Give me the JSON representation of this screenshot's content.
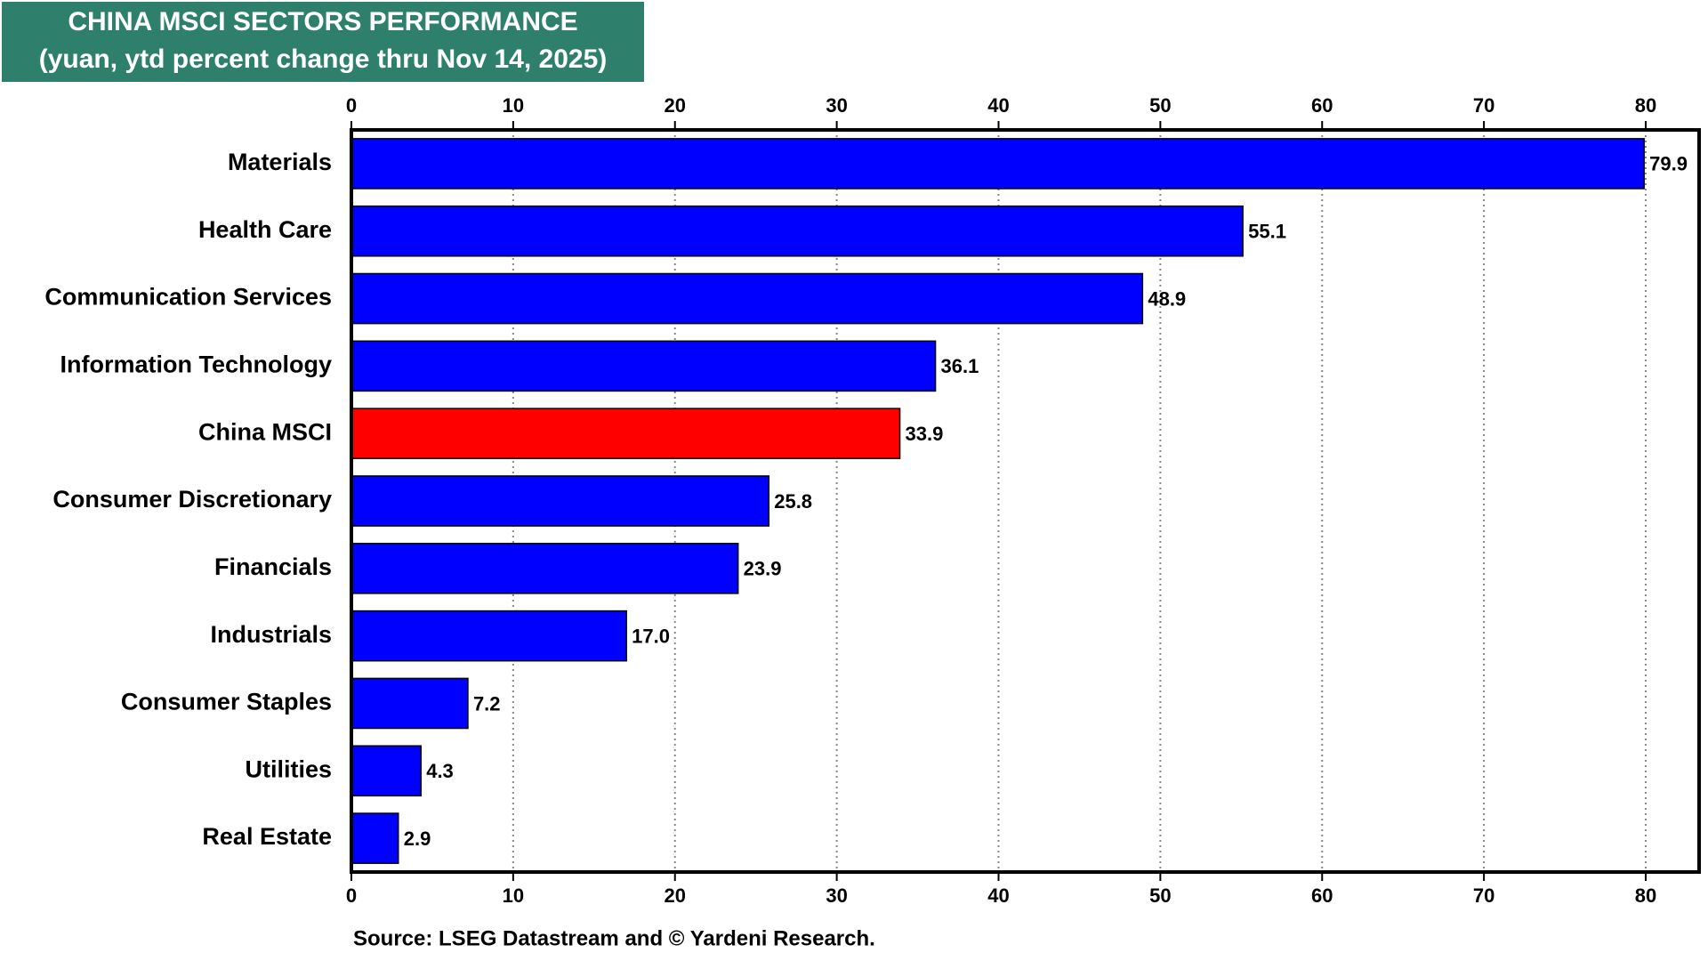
{
  "chart_data": {
    "type": "hbar",
    "title": "CHINA MSCI SECTORS PERFORMANCE",
    "subtitle": "(yuan, ytd percent change thru Nov 14, 2025)",
    "source": "Source: LSEG Datastream and © Yardeni Research.",
    "categories": [
      "Materials",
      "Health Care",
      "Communication Services",
      "Information Technology",
      "China MSCI",
      "Consumer Discretionary",
      "Financials",
      "Industrials",
      "Consumer Staples",
      "Utilities",
      "Real Estate"
    ],
    "values": [
      79.9,
      55.1,
      48.9,
      36.1,
      33.9,
      25.8,
      23.9,
      17.0,
      7.2,
      4.3,
      2.9
    ],
    "value_labels": [
      "79.9",
      "55.1",
      "48.9",
      "36.1",
      "33.9",
      "25.8",
      "23.9",
      "17.0",
      "7.2",
      "4.3",
      "2.9"
    ],
    "colors": [
      "#0000ff",
      "#0000ff",
      "#0000ff",
      "#0000ff",
      "#ff0000",
      "#0000ff",
      "#0000ff",
      "#0000ff",
      "#0000ff",
      "#0000ff",
      "#0000ff"
    ],
    "xlim": [
      0,
      83.3
    ],
    "xticks": [
      0,
      10,
      20,
      30,
      40,
      50,
      60,
      70,
      80
    ],
    "grid": true
  }
}
